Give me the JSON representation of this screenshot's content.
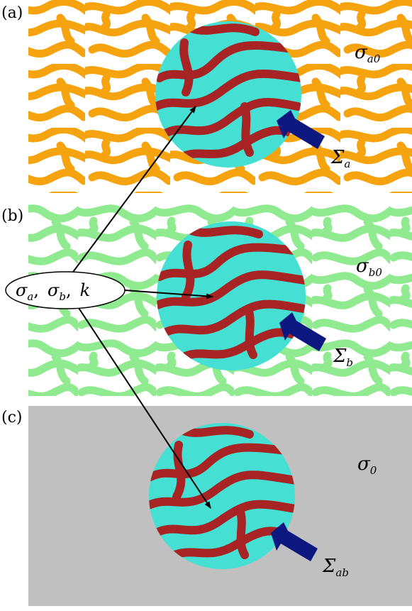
{
  "colors": {
    "panel_a_pattern": "#f5a30f",
    "panel_b_pattern": "#90ea90",
    "panel_c_background": "#c0c0c0",
    "circle_fill": "#45e0d3",
    "circle_stripes": "#a82323",
    "arrow": "#0c1880",
    "background_white": "#ffffff"
  },
  "panels": [
    {
      "label": "(a)",
      "region_symbol": "σ",
      "region_sub": "a0",
      "boundary_symbol": "Σ",
      "boundary_sub": "a"
    },
    {
      "label": "(b)",
      "region_symbol": "σ",
      "region_sub": "b0",
      "boundary_symbol": "Σ",
      "boundary_sub": "b"
    },
    {
      "label": "(c)",
      "region_symbol": "σ",
      "region_sub": "0",
      "boundary_symbol": "Σ",
      "boundary_sub": "ab"
    }
  ],
  "callout": {
    "sigma": "σ",
    "sub_a": "a",
    "sub_b": "b",
    "comma": ",",
    "k": "k"
  }
}
